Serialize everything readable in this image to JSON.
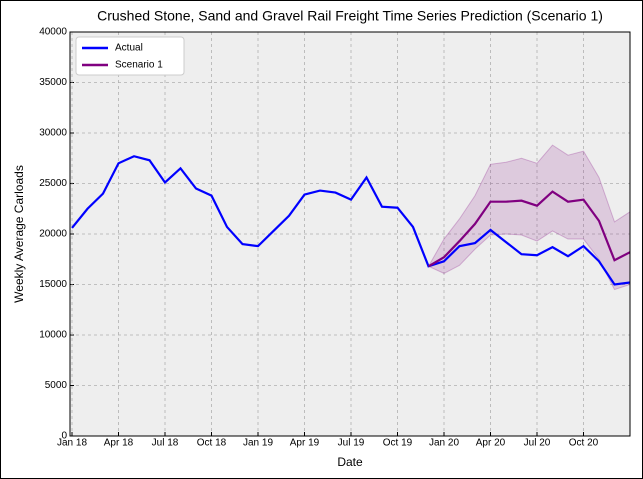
{
  "chart_data": {
    "type": "line",
    "title": "Crushed Stone, Sand and Gravel Rail Freight Time Series Prediction (Scenario 1)",
    "xlabel": "Date",
    "ylabel": "Weekly Average Carloads",
    "categories": [
      "Jan 18",
      null,
      null,
      "Apr 18",
      null,
      null,
      "Jul 18",
      null,
      null,
      "Oct 18",
      null,
      null,
      "Jan 19",
      null,
      null,
      "Apr 19",
      null,
      null,
      "Jul 19",
      null,
      null,
      "Oct 19",
      null,
      null,
      "Jan 20",
      null,
      null,
      "Apr 20",
      null,
      null,
      "Jul 20",
      null,
      null,
      "Oct 20",
      null,
      null,
      null
    ],
    "series": [
      {
        "name": "Actual",
        "color": "#0000ff",
        "values": [
          20600,
          22500,
          24000,
          27000,
          27700,
          27300,
          25100,
          26500,
          24500,
          23800,
          20700,
          19000,
          18800,
          20300,
          21800,
          23900,
          24300,
          24100,
          23400,
          25600,
          22700,
          22600,
          20700,
          16800,
          17300,
          18800,
          19100,
          20400,
          19200,
          18000,
          17900,
          18700,
          17800,
          18800,
          17300,
          15000,
          15200
        ]
      },
      {
        "name": "Scenario 1",
        "color": "#800080",
        "values": [
          null,
          null,
          null,
          null,
          null,
          null,
          null,
          null,
          null,
          null,
          null,
          null,
          null,
          null,
          null,
          null,
          null,
          null,
          null,
          null,
          null,
          null,
          null,
          16800,
          17700,
          19300,
          21000,
          23200,
          23200,
          23300,
          22800,
          24200,
          23200,
          23400,
          21300,
          17400,
          18200
        ]
      }
    ],
    "interval": {
      "color": "#800080",
      "upper": [
        null,
        null,
        null,
        null,
        null,
        null,
        null,
        null,
        null,
        null,
        null,
        null,
        null,
        null,
        null,
        null,
        null,
        null,
        null,
        null,
        null,
        null,
        null,
        16800,
        19500,
        21500,
        23800,
        26900,
        27100,
        27500,
        27000,
        28800,
        27800,
        28200,
        25600,
        21200,
        22200
      ],
      "lower": [
        null,
        null,
        null,
        null,
        null,
        null,
        null,
        null,
        null,
        null,
        null,
        null,
        null,
        null,
        null,
        null,
        null,
        null,
        null,
        null,
        null,
        null,
        null,
        16800,
        16100,
        16900,
        18500,
        19900,
        20000,
        19900,
        19300,
        20300,
        19500,
        19500,
        17500,
        14500,
        15000
      ]
    },
    "ylim": [
      0,
      40000
    ],
    "yticks": [
      0,
      5000,
      10000,
      15000,
      20000,
      25000,
      30000,
      35000,
      40000
    ],
    "grid": true,
    "legend": "upper left"
  }
}
